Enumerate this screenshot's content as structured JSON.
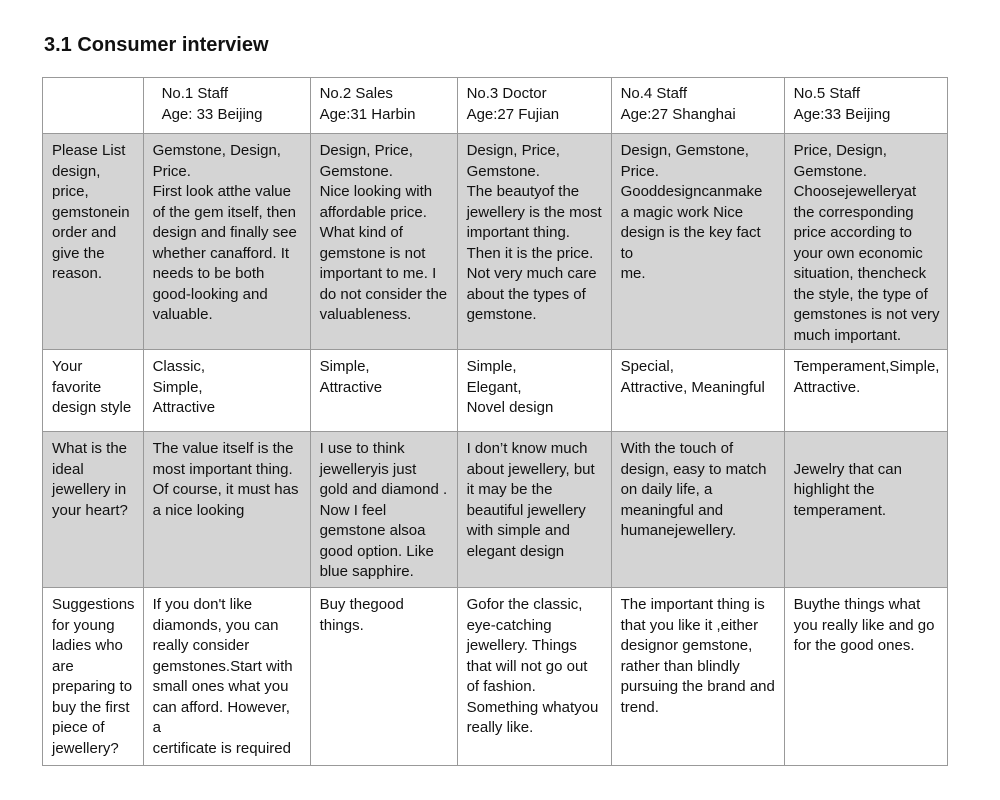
{
  "title": "3.1 Consumer interview",
  "headers": [
    "",
    "No.1     Staff\nAge: 33 Beijing",
    "No.2    Sales\nAge:31 Harbin",
    "No.3  Doctor\nAge:27 Fujian",
    "No.4    Staff\nAge:27 Shanghai",
    "No.5   Staff\nAge:33 Beijing"
  ],
  "rows": [
    {
      "question": "Please List\ndesign,\nprice,\ngemstonein\norder  and\ngive the\nreason.",
      "answers": [
        "Gemstone, Design,\nPrice.\nFirst look atthe value\nof the gem itself, then\ndesign and finally see\nwhether canafford. It\nneeds to be both\ngood-looking and\nvaluable.",
        "Design, Price,\nGemstone.\nNice looking with\naffordable price.\nWhat kind of\ngemstone is not\nimportant to me. I\ndo not consider the\nvaluableness.",
        "Design, Price,\nGemstone.\nThe beautyof the\njewellery is the most\nimportant thing.\nThen it is the price.\nNot very much care\nabout the types of\ngemstone.",
        "Design, Gemstone,\nPrice.\nGooddesigncanmake\na magic work Nice\ndesign is the key fact to\nme.",
        "Price, Design,\nGemstone.\nChoosejewelleryat\nthe corresponding\nprice according to\nyour own economic\nsituation, thencheck\nthe style, the type of\ngemstones is not very\nmuch important."
      ]
    },
    {
      "question": "Your\nfavorite\ndesign style",
      "answers": [
        "Classic,\nSimple,\nAttractive",
        "Simple,\nAttractive",
        "Simple,\nElegant,\nNovel design",
        "Special,\nAttractive, Meaningful",
        "Temperament,Simple,\nAttractive."
      ]
    },
    {
      "question": "What is the\nideal\njewellery in\nyour heart?",
      "answers": [
        "The value itself is the\nmost important thing.\nOf course, it must has\na nice looking",
        "I use to think\njewelleryis just\ngold and diamond .\nNow I feel\ngemstone alsoa\ngood option. Like\nblue sapphire.",
        "I don’t know much\nabout jewellery, but\nit may be the\nbeautiful jewellery\nwith simple and\nelegant design",
        "With the touch of\ndesign, easy to match\non daily life, a\nmeaningful and\nhumanejewellery.",
        "\nJewelry that can\nhighlight the\ntemperament."
      ]
    },
    {
      "question": "Suggestions\nfor young\nladies who\nare\npreparing to\nbuy the first\npiece of\njewellery?",
      "answers": [
        "If you don't like\ndiamonds, you can\nreally consider\ngemstones.Start with\nsmall ones what you\ncan afford. However, a\ncertificate is required",
        "Buy thegood things.",
        "Gofor the classic,\neye-catching\njewellery. Things\nthat will not go out\nof fashion.\nSomething whatyou\nreally like.",
        "The important thing is\nthat you like it ,either\ndesignor  gemstone,\nrather than blindly\npursuing the brand and\ntrend.",
        "Buythe things what\nyou really like and go\nfor  the good ones."
      ]
    }
  ]
}
